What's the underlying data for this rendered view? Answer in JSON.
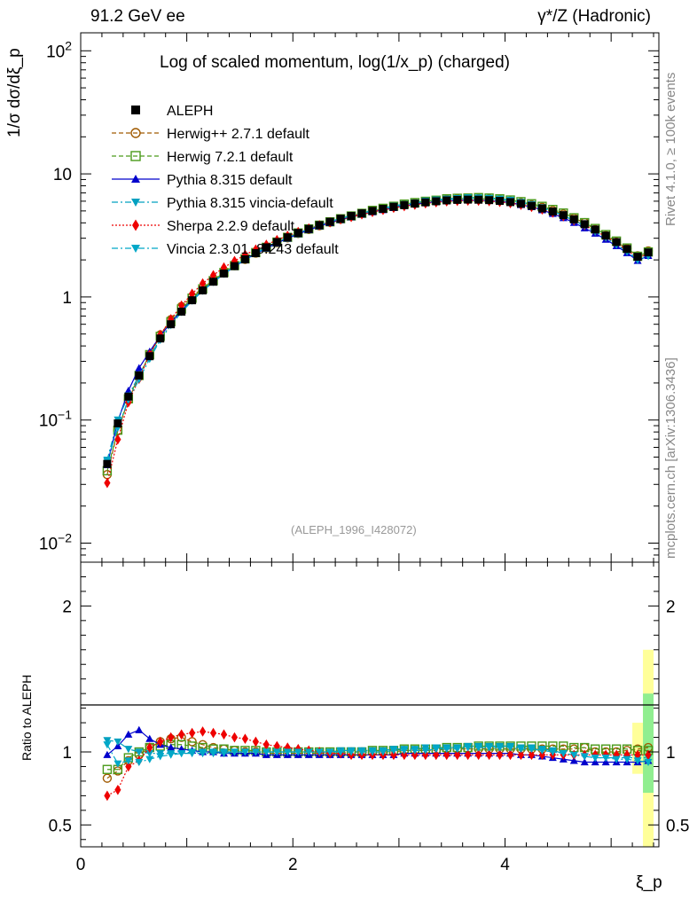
{
  "header": {
    "energy_label": "91.2 GeV ee",
    "process_label": "γ*/Z (Hadronic)"
  },
  "side": {
    "rivet_label": "Rivet 4.1.0, ≥ 100k events",
    "mcplots_label": "mcplots.cern.ch [arXiv:1306.3436]"
  },
  "chart_data": {
    "type": "scatter",
    "title": "Log of scaled momentum, log(1/x_p) (charged)",
    "analysis_id": "(ALEPH_1996_I428072)",
    "ylabel": "1/σ dσ/dξ_p",
    "xlabel": "ξ_p",
    "ratio_ylabel": "Ratio to ALEPH",
    "xlim": [
      0,
      5.45
    ],
    "ylim": [
      0.007,
      140
    ],
    "yscale": "log",
    "ratio_ylim": [
      0.35,
      2.3
    ],
    "x_ticks": [
      "0",
      "2",
      "4"
    ],
    "y_ticks": [
      "10^-2",
      "10^-1",
      "1",
      "10",
      "10^2"
    ],
    "ratio_ticks": [
      "0.5",
      "1",
      "2"
    ],
    "ratio_ticks_right": [
      "0.5",
      "1",
      "2"
    ],
    "x": [
      0.25,
      0.35,
      0.45,
      0.55,
      0.65,
      0.75,
      0.85,
      0.95,
      1.05,
      1.15,
      1.25,
      1.35,
      1.45,
      1.55,
      1.65,
      1.75,
      1.85,
      1.95,
      2.05,
      2.15,
      2.25,
      2.35,
      2.45,
      2.55,
      2.65,
      2.75,
      2.85,
      2.95,
      3.05,
      3.15,
      3.25,
      3.35,
      3.45,
      3.55,
      3.65,
      3.75,
      3.85,
      3.95,
      4.05,
      4.15,
      4.25,
      4.35,
      4.45,
      4.55,
      4.65,
      4.75,
      4.85,
      4.95,
      5.05,
      5.15,
      5.25,
      5.35
    ],
    "reference": {
      "name": "ALEPH",
      "color": "#000000",
      "values": [
        0.044,
        0.094,
        0.155,
        0.23,
        0.33,
        0.46,
        0.6,
        0.76,
        0.94,
        1.13,
        1.33,
        1.55,
        1.78,
        2.02,
        2.27,
        2.53,
        2.79,
        3.05,
        3.31,
        3.57,
        3.83,
        4.08,
        4.32,
        4.55,
        4.78,
        5.0,
        5.2,
        5.4,
        5.57,
        5.73,
        5.87,
        5.99,
        6.09,
        6.15,
        6.18,
        6.17,
        6.12,
        6.03,
        5.9,
        5.72,
        5.5,
        5.24,
        4.94,
        4.62,
        4.27,
        3.9,
        3.53,
        3.15,
        2.79,
        2.45,
        2.12,
        2.3
      ]
    },
    "series": [
      {
        "name": "Herwig++ 2.7.1 default",
        "color": "#a05a00",
        "marker": "circle-open",
        "line": "dashed",
        "ratio": [
          0.82,
          0.87,
          0.94,
          0.98,
          1.03,
          1.07,
          1.09,
          1.1,
          1.07,
          1.05,
          1.03,
          1.02,
          1.01,
          1.0,
          1.0,
          0.99,
          0.99,
          0.99,
          0.99,
          0.99,
          0.99,
          0.99,
          0.99,
          1.0,
          1.0,
          1.0,
          1.0,
          1.0,
          1.01,
          1.01,
          1.01,
          1.01,
          1.02,
          1.02,
          1.02,
          1.02,
          1.02,
          1.02,
          1.02,
          1.02,
          1.02,
          1.02,
          1.02,
          1.02,
          1.02,
          1.03,
          1.0,
          1.0,
          1.0,
          1.01,
          1.02,
          1.03
        ]
      },
      {
        "name": "Herwig 7.2.1 default",
        "color": "#4a9a1a",
        "marker": "square-open",
        "line": "dashed",
        "ratio": [
          0.88,
          0.88,
          0.96,
          1.0,
          1.03,
          1.04,
          1.05,
          1.05,
          1.04,
          1.03,
          1.02,
          1.02,
          1.01,
          1.01,
          1.01,
          1.0,
          1.0,
          1.0,
          1.0,
          1.0,
          1.0,
          1.0,
          1.0,
          1.0,
          1.0,
          1.01,
          1.01,
          1.01,
          1.02,
          1.02,
          1.02,
          1.02,
          1.03,
          1.03,
          1.03,
          1.04,
          1.04,
          1.04,
          1.04,
          1.04,
          1.04,
          1.04,
          1.04,
          1.04,
          1.03,
          1.03,
          1.02,
          1.02,
          1.02,
          1.02,
          1.01,
          1.01
        ]
      },
      {
        "name": "Pythia 8.315 default",
        "color": "#0000cc",
        "marker": "triangle-up",
        "line": "solid",
        "ratio": [
          0.98,
          1.04,
          1.12,
          1.15,
          1.09,
          1.05,
          1.03,
          1.02,
          1.01,
          1.0,
          1.0,
          0.99,
          0.99,
          0.99,
          0.99,
          0.98,
          0.98,
          0.98,
          0.98,
          0.98,
          0.98,
          0.98,
          0.98,
          0.98,
          0.98,
          0.98,
          0.98,
          0.98,
          0.99,
          0.99,
          0.99,
          0.99,
          0.99,
          0.99,
          0.99,
          0.99,
          0.99,
          0.99,
          0.99,
          0.98,
          0.98,
          0.97,
          0.96,
          0.95,
          0.94,
          0.93,
          0.93,
          0.93,
          0.93,
          0.93,
          0.93,
          0.94
        ]
      },
      {
        "name": "Pythia 8.315 vincia-default",
        "color": "#00a0c0",
        "marker": "triangle-down",
        "line": "dashdot",
        "ratio": [
          1.08,
          1.07,
          1.02,
          1.0,
          0.99,
          0.99,
          0.99,
          0.99,
          0.99,
          0.99,
          0.99,
          0.99,
          1.0,
          1.0,
          1.0,
          1.0,
          1.0,
          1.0,
          1.0,
          1.0,
          1.0,
          1.0,
          1.01,
          1.01,
          1.01,
          1.01,
          1.01,
          1.02,
          1.02,
          1.02,
          1.03,
          1.03,
          1.03,
          1.03,
          1.04,
          1.04,
          1.04,
          1.04,
          1.04,
          1.03,
          1.03,
          1.02,
          1.01,
          0.99,
          0.98,
          0.97,
          0.96,
          0.96,
          0.96,
          0.96,
          0.96,
          0.96
        ]
      },
      {
        "name": "Sherpa 2.2.9 default",
        "color": "#ee0000",
        "marker": "diamond",
        "line": "dotted",
        "ratio": [
          0.7,
          0.74,
          0.9,
          0.94,
          1.03,
          1.07,
          1.1,
          1.12,
          1.13,
          1.14,
          1.13,
          1.12,
          1.1,
          1.09,
          1.07,
          1.05,
          1.04,
          1.03,
          1.02,
          1.01,
          1.0,
          0.99,
          0.99,
          0.98,
          0.98,
          0.98,
          0.98,
          0.98,
          0.98,
          0.98,
          0.98,
          0.98,
          0.98,
          0.98,
          0.98,
          0.98,
          0.98,
          0.98,
          0.98,
          0.98,
          0.98,
          0.98,
          0.98,
          0.98,
          0.98,
          0.98,
          0.98,
          0.98,
          0.98,
          0.98,
          0.98,
          0.98
        ]
      },
      {
        "name": "Vincia 2.3.01_8.243 default",
        "color": "#00a8c8",
        "marker": "triangle-down",
        "line": "dashdot",
        "ratio": [
          1.05,
          0.92,
          0.94,
          0.93,
          0.95,
          0.97,
          0.98,
          0.99,
          1.0,
          1.0,
          1.0,
          1.0,
          1.0,
          1.0,
          1.0,
          1.0,
          1.0,
          1.0,
          1.0,
          1.0,
          1.0,
          1.0,
          1.0,
          1.0,
          1.0,
          1.0,
          1.0,
          1.01,
          1.01,
          1.01,
          1.01,
          1.02,
          1.02,
          1.02,
          1.03,
          1.03,
          1.03,
          1.03,
          1.03,
          1.02,
          1.02,
          1.01,
          1.0,
          0.99,
          0.98,
          0.97,
          0.96,
          0.96,
          0.95,
          0.95,
          0.94,
          0.93
        ]
      }
    ],
    "ratio_band": {
      "x_range": [
        5.3,
        5.4
      ],
      "inner": [
        0.72,
        1.4
      ],
      "outer": [
        0.35,
        1.7
      ],
      "inner_color": "#90ee90",
      "outer_color": "#ffff99",
      "side_band": {
        "x_range": [
          5.2,
          5.3
        ],
        "outer": [
          0.85,
          1.2
        ]
      }
    }
  }
}
